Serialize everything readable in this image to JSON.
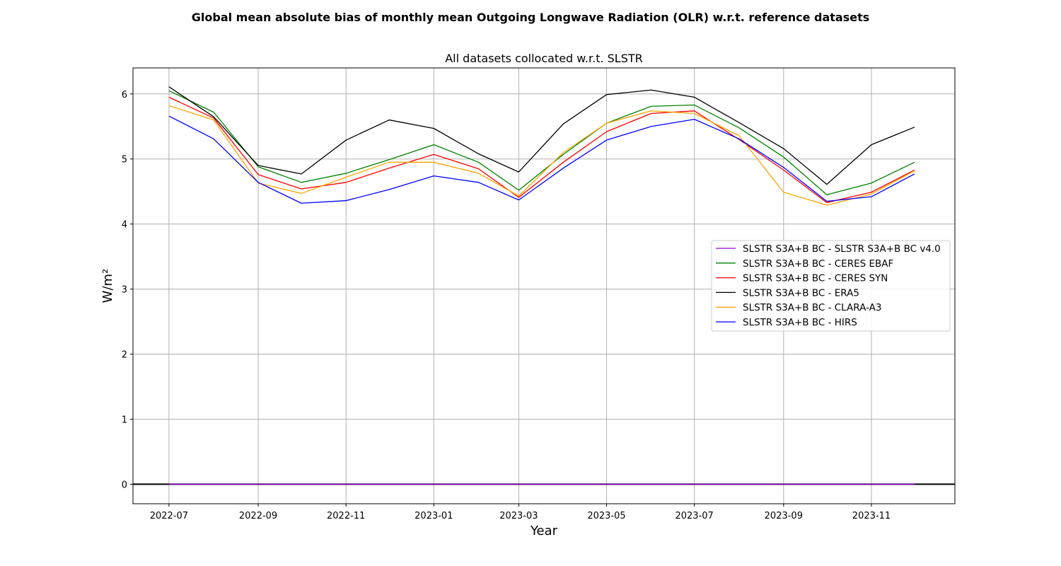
{
  "chart_data": {
    "type": "line",
    "suptitle": "Global mean absolute bias of monthly mean Outgoing Longwave Radiation (OLR) w.r.t. reference datasets",
    "title": "All datasets collocated w.r.t. SLSTR",
    "xlabel": "Year",
    "ylabel": "W/m²",
    "ylim": [
      -0.3,
      6.4
    ],
    "xlim": [
      "2022-06-06",
      "2023-12-29"
    ],
    "grid": true,
    "legend_position": "center-right",
    "x": [
      "2022-07",
      "2022-08",
      "2022-09",
      "2022-10",
      "2022-11",
      "2022-12",
      "2023-01",
      "2023-02",
      "2023-03",
      "2023-04",
      "2023-05",
      "2023-06",
      "2023-07",
      "2023-08",
      "2023-09",
      "2023-10",
      "2023-11",
      "2023-12"
    ],
    "xticks": [
      "2022-07",
      "2022-09",
      "2022-11",
      "2023-01",
      "2023-03",
      "2023-05",
      "2023-07",
      "2023-09",
      "2023-11"
    ],
    "yticks": [
      0,
      1,
      2,
      3,
      4,
      5,
      6
    ],
    "zero_line": 0,
    "series": [
      {
        "name": "SLSTR S3A+B BC - SLSTR S3A+B BC v4.0",
        "color": "#9400d3",
        "values": [
          0,
          0,
          0,
          0,
          0,
          0,
          0,
          0,
          0,
          0,
          0,
          0,
          0,
          0,
          0,
          0,
          0,
          0
        ]
      },
      {
        "name": "SLSTR S3A+B BC - CERES EBAF",
        "color": "#008000",
        "values": [
          6.05,
          5.72,
          4.88,
          4.64,
          4.78,
          4.99,
          5.22,
          4.95,
          4.52,
          5.07,
          5.55,
          5.81,
          5.83,
          5.48,
          5.03,
          4.45,
          4.63,
          4.95
        ]
      },
      {
        "name": "SLSTR S3A+B BC - CERES SYN",
        "color": "#ff0000",
        "values": [
          5.95,
          5.63,
          4.76,
          4.54,
          4.64,
          4.86,
          5.07,
          4.85,
          4.41,
          4.95,
          5.42,
          5.7,
          5.74,
          5.3,
          4.83,
          4.33,
          4.49,
          4.83
        ]
      },
      {
        "name": "SLSTR S3A+B BC - ERA5",
        "color": "#000000",
        "values": [
          6.11,
          5.65,
          4.9,
          4.77,
          5.29,
          5.6,
          5.47,
          5.08,
          4.8,
          5.54,
          5.99,
          6.06,
          5.95,
          5.56,
          5.16,
          4.61,
          5.22,
          5.49
        ]
      },
      {
        "name": "SLSTR S3A+B BC - CLARA-A3",
        "color": "#ffa500",
        "values": [
          5.82,
          5.6,
          4.63,
          4.47,
          4.72,
          4.95,
          4.95,
          4.78,
          4.43,
          5.1,
          5.55,
          5.74,
          5.7,
          5.36,
          4.49,
          4.29,
          4.46,
          4.82
        ]
      },
      {
        "name": "SLSTR S3A+B BC - HIRS",
        "color": "#0000ff",
        "values": [
          5.66,
          5.31,
          4.64,
          4.32,
          4.36,
          4.53,
          4.74,
          4.64,
          4.37,
          4.86,
          5.29,
          5.5,
          5.61,
          5.31,
          4.87,
          4.35,
          4.42,
          4.77
        ]
      }
    ]
  }
}
